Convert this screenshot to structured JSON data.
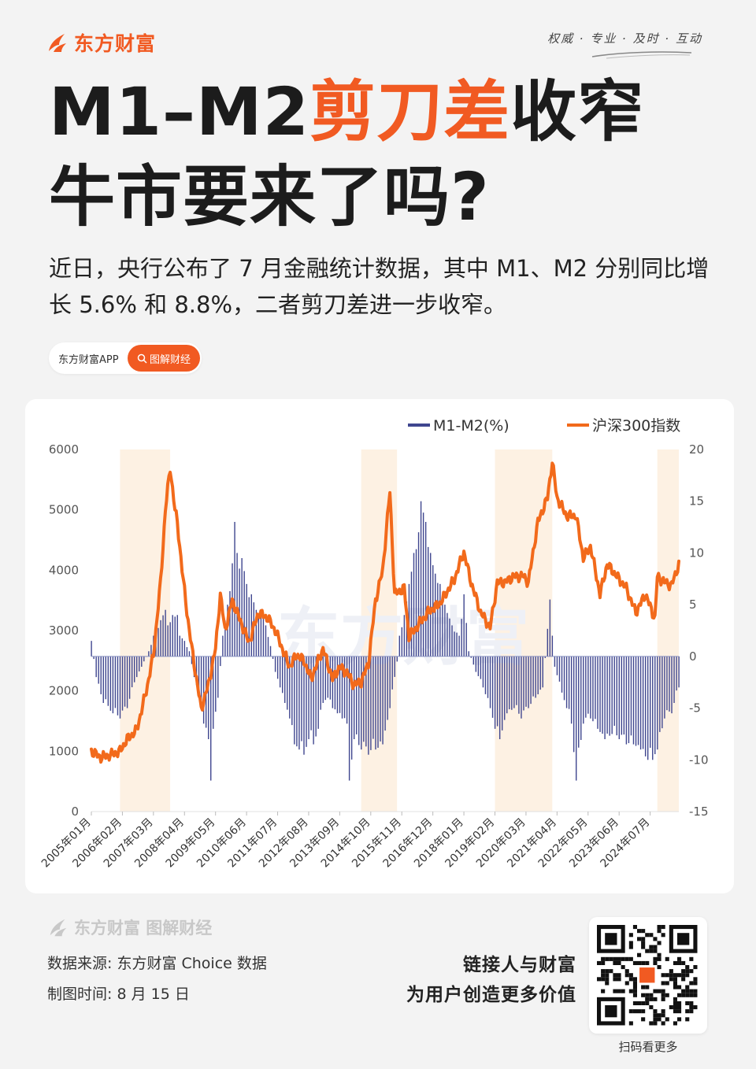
{
  "brand": {
    "name": "东方财富"
  },
  "slogan": "权威 · 专业 · 及时 · 互动",
  "title": {
    "part1": "M1–M2",
    "part_accent": "剪刀差",
    "part2": "收窄",
    "line2": "牛市要来了吗?"
  },
  "subtitle": "近日，央行公布了 7 月金融统计数据，其中 M1、M2 分别同比增长 5.6% 和 8.8%，二者剪刀差进一步收窄。",
  "app_pill": {
    "label": "东方财富APP",
    "button": "图解财经"
  },
  "colors": {
    "accent": "#f15a22",
    "bar": "#3f468f",
    "shade": "#fdf1e3",
    "text": "#1c1c1c"
  },
  "chart_data": {
    "type": "bar+line",
    "legend": [
      "M1-M2(%)",
      "沪深300指数"
    ],
    "legend_position": "top-right",
    "y_left": {
      "range": [
        0,
        6000
      ],
      "ticks": [
        "0",
        "1000",
        "2000",
        "3000",
        "4000",
        "5000",
        "6000"
      ]
    },
    "y_right": {
      "range": [
        -15,
        20
      ],
      "ticks": [
        "-15",
        "-10",
        "-5",
        "0",
        "5",
        "10",
        "15",
        "20"
      ]
    },
    "x_range": [
      "2005-01",
      "2025-07"
    ],
    "x_ticks": [
      "2005年01月",
      "2006年02月",
      "2007年03月",
      "2008年04月",
      "2009年05月",
      "2010年06月",
      "2011年07月",
      "2012年08月",
      "2013年09月",
      "2014年10月",
      "2015年11月",
      "2016年12月",
      "2018年01月",
      "2019年02月",
      "2020年03月",
      "2021年04月",
      "2022年05月",
      "2023年06月",
      "2024年07月"
    ],
    "shaded_periods": [
      [
        "2006-01",
        "2007-10"
      ],
      [
        "2014-06",
        "2015-09"
      ],
      [
        "2019-02",
        "2021-02"
      ],
      [
        "2024-10",
        "2025-07"
      ]
    ],
    "series": [
      {
        "name": "M1-M2(%)",
        "axis": "right",
        "type": "bar",
        "points": [
          [
            "2005-01",
            1.5
          ],
          [
            "2005-03",
            -2
          ],
          [
            "2005-06",
            -4.5
          ],
          [
            "2005-10",
            -5.5
          ],
          [
            "2006-01",
            -6
          ],
          [
            "2006-04",
            -5
          ],
          [
            "2006-07",
            -2.5
          ],
          [
            "2006-10",
            -1
          ],
          [
            "2007-01",
            0.5
          ],
          [
            "2007-03",
            2
          ],
          [
            "2007-06",
            3.5
          ],
          [
            "2007-08",
            4.5
          ],
          [
            "2007-09",
            3
          ],
          [
            "2007-11",
            4
          ],
          [
            "2008-01",
            4
          ],
          [
            "2008-02",
            2
          ],
          [
            "2008-04",
            1.5
          ],
          [
            "2008-06",
            0.5
          ],
          [
            "2008-08",
            -2
          ],
          [
            "2008-10",
            -4
          ],
          [
            "2008-12",
            -6.5
          ],
          [
            "2009-02",
            -8
          ],
          [
            "2009-03",
            -12
          ],
          [
            "2009-04",
            -7
          ],
          [
            "2009-06",
            -4
          ],
          [
            "2009-08",
            2
          ],
          [
            "2009-10",
            5
          ],
          [
            "2009-12",
            9
          ],
          [
            "2010-01",
            13
          ],
          [
            "2010-02",
            10
          ],
          [
            "2010-04",
            9.5
          ],
          [
            "2010-06",
            7
          ],
          [
            "2010-08",
            6
          ],
          [
            "2010-10",
            4.5
          ],
          [
            "2010-12",
            4.5
          ],
          [
            "2011-02",
            3
          ],
          [
            "2011-04",
            1
          ],
          [
            "2011-06",
            -1.5
          ],
          [
            "2011-08",
            -3
          ],
          [
            "2011-10",
            -4.5
          ],
          [
            "2011-12",
            -6
          ],
          [
            "2012-02",
            -8.5
          ],
          [
            "2012-04",
            -9
          ],
          [
            "2012-06",
            -9.5
          ],
          [
            "2012-08",
            -8
          ],
          [
            "2012-10",
            -8.5
          ],
          [
            "2012-12",
            -7
          ],
          [
            "2013-02",
            -4.5
          ],
          [
            "2013-04",
            -4
          ],
          [
            "2013-06",
            -5
          ],
          [
            "2013-08",
            -5.5
          ],
          [
            "2013-10",
            -6
          ],
          [
            "2013-12",
            -6.5
          ],
          [
            "2014-01",
            -12
          ],
          [
            "2014-03",
            -8
          ],
          [
            "2014-06",
            -9
          ],
          [
            "2014-09",
            -9.5
          ],
          [
            "2014-12",
            -9
          ],
          [
            "2015-03",
            -8.5
          ],
          [
            "2015-06",
            -5
          ],
          [
            "2015-09",
            -0.5
          ],
          [
            "2015-10",
            2
          ],
          [
            "2015-12",
            4
          ],
          [
            "2016-02",
            7
          ],
          [
            "2016-04",
            10
          ],
          [
            "2016-06",
            12
          ],
          [
            "2016-07",
            15
          ],
          [
            "2016-09",
            13
          ],
          [
            "2016-11",
            10
          ],
          [
            "2017-01",
            8
          ],
          [
            "2017-03",
            7
          ],
          [
            "2017-05",
            5
          ],
          [
            "2017-08",
            3
          ],
          [
            "2017-11",
            2
          ],
          [
            "2018-01",
            6
          ],
          [
            "2018-03",
            0.5
          ],
          [
            "2018-06",
            -1.5
          ],
          [
            "2018-09",
            -3
          ],
          [
            "2018-12",
            -5
          ],
          [
            "2019-02",
            -7
          ],
          [
            "2019-04",
            -8
          ],
          [
            "2019-07",
            -5.5
          ],
          [
            "2019-10",
            -5
          ],
          [
            "2020-01",
            -6
          ],
          [
            "2020-04",
            -5
          ],
          [
            "2020-07",
            -4
          ],
          [
            "2020-10",
            -3
          ],
          [
            "2021-01",
            5.5
          ],
          [
            "2021-03",
            -1
          ],
          [
            "2021-06",
            -3.5
          ],
          [
            "2021-08",
            -5
          ],
          [
            "2021-10",
            -6.5
          ],
          [
            "2021-12",
            -12
          ],
          [
            "2022-03",
            -6.5
          ],
          [
            "2022-06",
            -6
          ],
          [
            "2022-09",
            -7
          ],
          [
            "2022-12",
            -8
          ],
          [
            "2023-03",
            -7.5
          ],
          [
            "2023-06",
            -8
          ],
          [
            "2023-09",
            -8.5
          ],
          [
            "2023-12",
            -8.5
          ],
          [
            "2024-03",
            -9
          ],
          [
            "2024-06",
            -10
          ],
          [
            "2024-08",
            -10
          ],
          [
            "2024-10",
            -9
          ],
          [
            "2025-01",
            -6
          ],
          [
            "2025-04",
            -5.5
          ],
          [
            "2025-07",
            -3
          ]
        ]
      },
      {
        "name": "沪深300指数",
        "axis": "left",
        "type": "line",
        "points": [
          [
            "2005-01",
            1000
          ],
          [
            "2005-05",
            900
          ],
          [
            "2005-10",
            950
          ],
          [
            "2006-01",
            1000
          ],
          [
            "2006-04",
            1200
          ],
          [
            "2006-08",
            1350
          ],
          [
            "2006-12",
            2000
          ],
          [
            "2007-03",
            2600
          ],
          [
            "2007-06",
            3800
          ],
          [
            "2007-08",
            5000
          ],
          [
            "2007-10",
            5700
          ],
          [
            "2007-12",
            5000
          ],
          [
            "2008-01",
            4800
          ],
          [
            "2008-03",
            4000
          ],
          [
            "2008-06",
            3000
          ],
          [
            "2008-09",
            2200
          ],
          [
            "2008-11",
            1700
          ],
          [
            "2009-02",
            2100
          ],
          [
            "2009-05",
            2700
          ],
          [
            "2009-07",
            3600
          ],
          [
            "2009-09",
            3000
          ],
          [
            "2009-12",
            3500
          ],
          [
            "2010-03",
            3200
          ],
          [
            "2010-07",
            2800
          ],
          [
            "2010-11",
            3300
          ],
          [
            "2011-03",
            3200
          ],
          [
            "2011-06",
            3000
          ],
          [
            "2011-09",
            2700
          ],
          [
            "2011-12",
            2400
          ],
          [
            "2012-03",
            2600
          ],
          [
            "2012-06",
            2500
          ],
          [
            "2012-09",
            2200
          ],
          [
            "2012-12",
            2500
          ],
          [
            "2013-02",
            2700
          ],
          [
            "2013-06",
            2200
          ],
          [
            "2013-09",
            2400
          ],
          [
            "2013-12",
            2300
          ],
          [
            "2014-03",
            2100
          ],
          [
            "2014-06",
            2150
          ],
          [
            "2014-09",
            2450
          ],
          [
            "2014-12",
            3500
          ],
          [
            "2015-03",
            4000
          ],
          [
            "2015-06",
            5300
          ],
          [
            "2015-08",
            3600
          ],
          [
            "2015-12",
            3700
          ],
          [
            "2016-02",
            2900
          ],
          [
            "2016-06",
            3100
          ],
          [
            "2016-10",
            3300
          ],
          [
            "2017-03",
            3450
          ],
          [
            "2017-06",
            3650
          ],
          [
            "2017-09",
            3850
          ],
          [
            "2018-01",
            4300
          ],
          [
            "2018-04",
            3800
          ],
          [
            "2018-08",
            3300
          ],
          [
            "2018-12",
            3050
          ],
          [
            "2019-03",
            3800
          ],
          [
            "2019-06",
            3800
          ],
          [
            "2019-10",
            3900
          ],
          [
            "2020-02",
            3900
          ],
          [
            "2020-04",
            3800
          ],
          [
            "2020-08",
            4800
          ],
          [
            "2020-12",
            5200
          ],
          [
            "2021-02",
            5800
          ],
          [
            "2021-04",
            5200
          ],
          [
            "2021-08",
            4900
          ],
          [
            "2021-12",
            4900
          ],
          [
            "2022-03",
            4200
          ],
          [
            "2022-06",
            4400
          ],
          [
            "2022-10",
            3600
          ],
          [
            "2023-01",
            4100
          ],
          [
            "2023-06",
            3850
          ],
          [
            "2023-09",
            3700
          ],
          [
            "2024-01",
            3300
          ],
          [
            "2024-05",
            3600
          ],
          [
            "2024-09",
            3200
          ],
          [
            "2024-10",
            3900
          ],
          [
            "2025-01",
            3800
          ],
          [
            "2025-04",
            3750
          ],
          [
            "2025-07",
            4100
          ]
        ]
      }
    ]
  },
  "footer": {
    "brand": "东方财富  图解财经",
    "source": "数据来源: 东方财富 Choice 数据",
    "date": "制图时间: 8 月 15 日"
  },
  "tagline": {
    "line1": "链接人与财富",
    "line2": "为用户创造更多价值"
  },
  "qr": {
    "caption": "扫码看更多"
  }
}
